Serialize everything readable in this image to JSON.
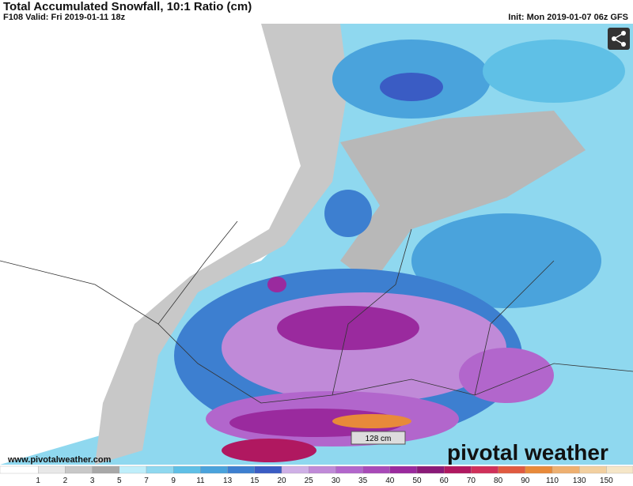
{
  "header": {
    "title": "Total Accumulated Snowfall, 10:1 Ratio (cm)",
    "valid": "F108 Valid: Fri 2019-01-11 18z",
    "init": "Init: Mon 2019-01-07 06z GFS"
  },
  "map": {
    "max_label": "128 cm",
    "website": "www.pivotalweather.com",
    "logo": "pivotal weather"
  },
  "legend": {
    "ticks": [
      "1",
      "2",
      "3",
      "5",
      "7",
      "9",
      "11",
      "13",
      "15",
      "20",
      "25",
      "30",
      "35",
      "40",
      "50",
      "60",
      "70",
      "80",
      "90",
      "110",
      "130",
      "150"
    ],
    "colors": [
      "#ffffff",
      "#e8e8e8",
      "#c8c8c8",
      "#a8a8a8",
      "#bfeefa",
      "#8fd8ef",
      "#5fc0e6",
      "#4aa3dc",
      "#3d7fd0",
      "#3a5cc4",
      "#cfb0e6",
      "#c08ad8",
      "#b266cc",
      "#a84ab8",
      "#9a2a9e",
      "#8a1a78",
      "#b01860",
      "#d0305a",
      "#e05a40",
      "#e88a3a",
      "#eeb070",
      "#f2d0a0",
      "#f5e6c8"
    ]
  }
}
